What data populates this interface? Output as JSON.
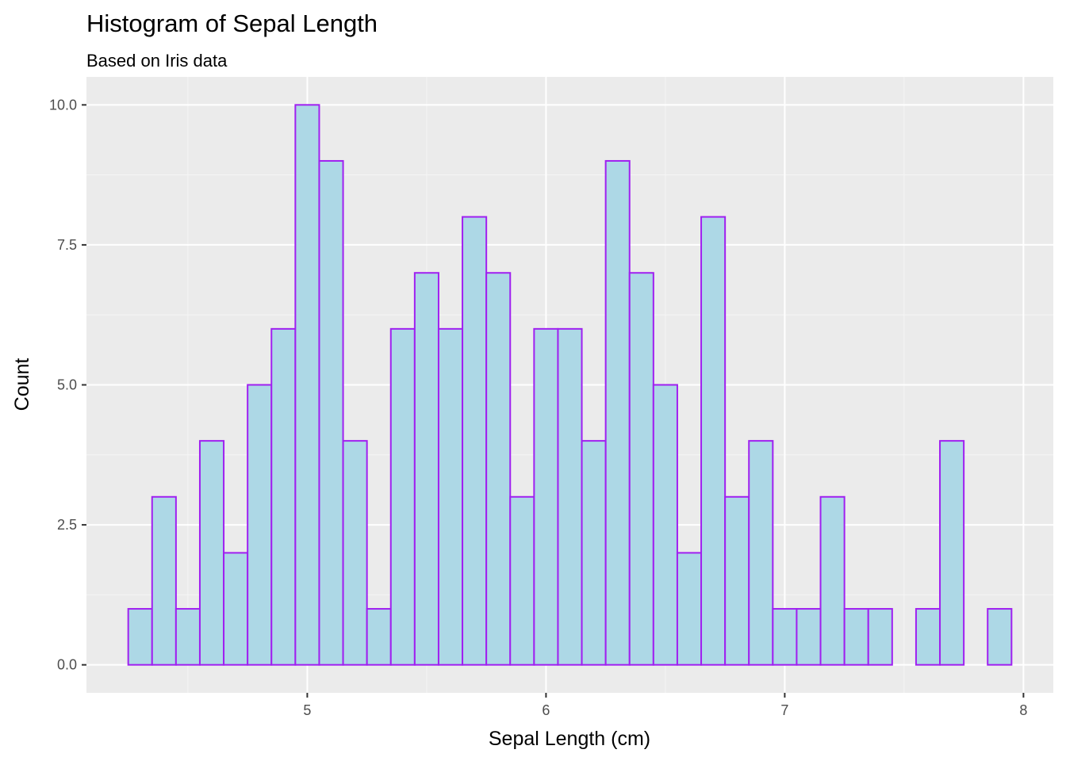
{
  "chart_data": {
    "type": "bar",
    "title": "Histogram of Sepal Length",
    "subtitle": "Based on Iris data",
    "xlabel": "Sepal Length (cm)",
    "ylabel": "Count",
    "xlim": [
      4.075,
      8.125
    ],
    "ylim": [
      -0.5,
      10.5
    ],
    "x_ticks": [
      5,
      6,
      7,
      8
    ],
    "x_tick_labels": [
      "5",
      "6",
      "7",
      "8"
    ],
    "y_ticks": [
      0,
      2.5,
      5,
      7.5,
      10
    ],
    "y_tick_labels": [
      "0.0",
      "2.5",
      "5.0",
      "7.5",
      "10.0"
    ],
    "bin_width": 0.1,
    "bin_centers": [
      4.3,
      4.4,
      4.5,
      4.6,
      4.7,
      4.8,
      4.9,
      5.0,
      5.1,
      5.2,
      5.3,
      5.4,
      5.5,
      5.6,
      5.7,
      5.8,
      5.9,
      6.0,
      6.1,
      6.2,
      6.3,
      6.4,
      6.5,
      6.6,
      6.7,
      6.8,
      6.9,
      7.0,
      7.1,
      7.2,
      7.3,
      7.4,
      7.5,
      7.6,
      7.7,
      7.8,
      7.9
    ],
    "values": [
      1,
      3,
      1,
      4,
      2,
      5,
      6,
      10,
      9,
      4,
      1,
      6,
      7,
      6,
      8,
      7,
      3,
      6,
      6,
      4,
      9,
      7,
      5,
      2,
      8,
      3,
      4,
      1,
      1,
      3,
      1,
      1,
      0,
      1,
      4,
      0,
      1
    ],
    "grid": true,
    "legend": "none",
    "colors": {
      "bar_fill": "#add8e6",
      "bar_outline": "#a020f0",
      "panel_background": "#ebebeb",
      "grid_major": "#ffffff",
      "grid_minor": "#f5f5f5",
      "tick_text": "#4d4d4d"
    }
  }
}
